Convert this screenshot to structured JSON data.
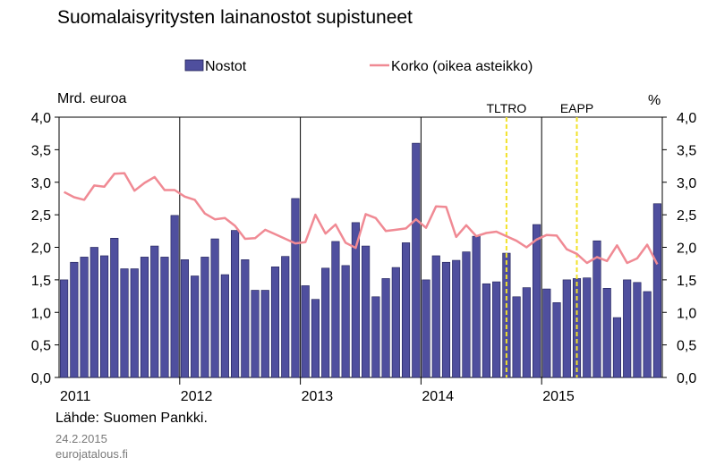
{
  "title": "Suomalaisyritysten lainanostot supistuneet",
  "left_unit": "Mrd. euroa",
  "right_unit": "%",
  "source": "Lähde: Suomen Pankki.",
  "date": "24.2.2015",
  "site": "eurojatalous.fi",
  "colors": {
    "bars": "#4f4f9e",
    "bar_border": "#1e1e55",
    "line": "#f08a94",
    "vlines": "#f2e22a",
    "axis": "#000000"
  },
  "chart_data": {
    "type": "bar",
    "series": [
      {
        "name": "Nostot",
        "type": "bar",
        "axis": "left",
        "values": [
          1.5,
          1.77,
          1.85,
          2.0,
          1.87,
          2.14,
          1.67,
          1.67,
          1.85,
          2.02,
          1.85,
          2.49,
          1.81,
          1.56,
          1.85,
          2.13,
          1.58,
          2.26,
          1.81,
          1.34,
          1.34,
          1.7,
          1.86,
          2.75,
          1.41,
          1.2,
          1.68,
          2.09,
          1.72,
          2.38,
          2.02,
          1.24,
          1.52,
          1.69,
          2.07,
          3.6,
          1.5,
          1.87,
          1.77,
          1.8,
          1.93,
          2.17,
          1.44,
          1.47,
          1.91,
          1.24,
          1.38,
          2.35,
          1.36,
          1.15,
          1.5,
          1.52,
          1.53,
          2.1,
          1.37,
          0.92,
          1.5,
          1.46,
          1.32,
          2.67
        ]
      },
      {
        "name": "Korko (oikea asteikko)",
        "type": "line",
        "axis": "right",
        "values": [
          2.85,
          2.77,
          2.73,
          2.95,
          2.93,
          3.13,
          3.14,
          2.87,
          2.99,
          3.08,
          2.88,
          2.88,
          2.78,
          2.73,
          2.52,
          2.43,
          2.45,
          2.33,
          2.13,
          2.14,
          2.27,
          2.2,
          2.13,
          2.06,
          2.08,
          2.5,
          2.21,
          2.35,
          2.07,
          1.99,
          2.51,
          2.45,
          2.25,
          2.27,
          2.29,
          2.43,
          2.3,
          2.63,
          2.62,
          2.16,
          2.34,
          2.17,
          2.22,
          2.24,
          2.17,
          2.1,
          2.0,
          2.12,
          2.19,
          2.18,
          1.97,
          1.9,
          1.76,
          1.85,
          1.79,
          2.03,
          1.76,
          1.83,
          2.04,
          1.74
        ]
      }
    ],
    "x_labels": [
      "2011",
      "2012",
      "2013",
      "2014",
      "2015"
    ],
    "year_separators_after_month": [
      12,
      24,
      36,
      48
    ],
    "annotations": [
      {
        "label": "TLTRO",
        "after_month": 44.5
      },
      {
        "label": "EAPP",
        "after_month": 51.5
      }
    ],
    "y_left": {
      "min": 0,
      "max": 4,
      "ticks": [
        "0,0",
        "0,5",
        "1,0",
        "1,5",
        "2,0",
        "2,5",
        "3,0",
        "3,5",
        "4,0"
      ]
    },
    "y_right": {
      "min": 0,
      "max": 4,
      "ticks": [
        "0,0",
        "0,5",
        "1,0",
        "1,5",
        "2,0",
        "2,5",
        "3,0",
        "3,5",
        "4,0"
      ]
    },
    "legend_position": "top"
  }
}
